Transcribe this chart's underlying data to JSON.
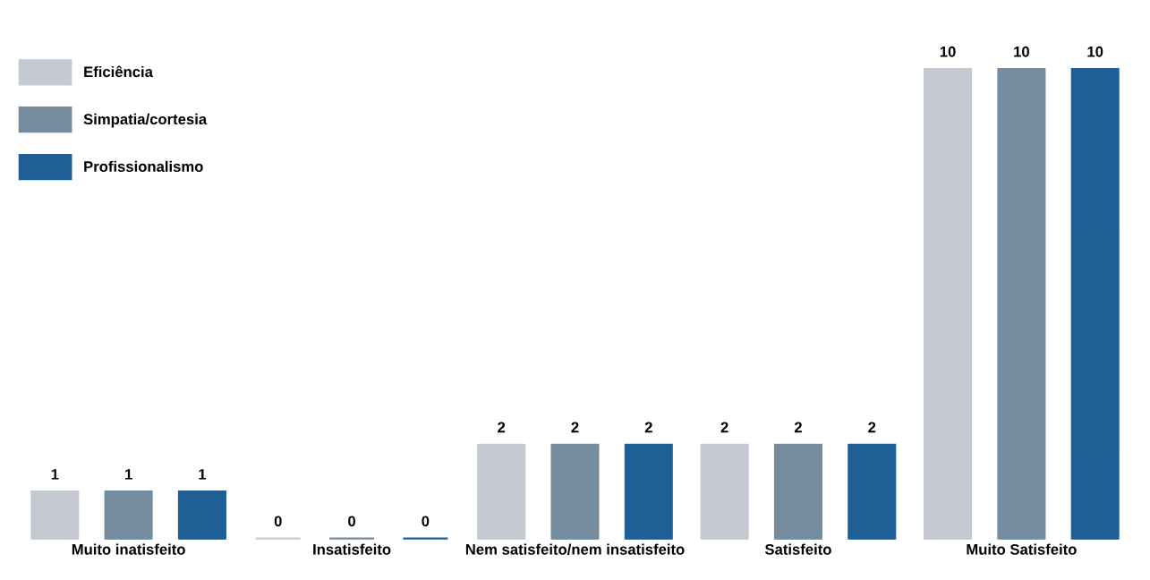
{
  "chart_data": {
    "type": "bar",
    "categories": [
      "Muito inatisfeito",
      "Insatisfeito",
      "Nem satisfeito/nem insatisfeito",
      "Satisfeito",
      "Muito Satisfeito"
    ],
    "series": [
      {
        "name": "Eficiência",
        "color": "#c5cad2",
        "values": [
          1,
          0,
          2,
          2,
          10
        ]
      },
      {
        "name": "Simpatia/cortesia",
        "color": "#758c9e",
        "values": [
          1,
          0,
          2,
          2,
          10
        ]
      },
      {
        "name": "Profissionalismo",
        "color": "#1f5f96",
        "values": [
          1,
          0,
          2,
          2,
          10
        ]
      }
    ],
    "data_labels": true,
    "legend": "top left",
    "grid": false,
    "tick_labels": "x"
  }
}
